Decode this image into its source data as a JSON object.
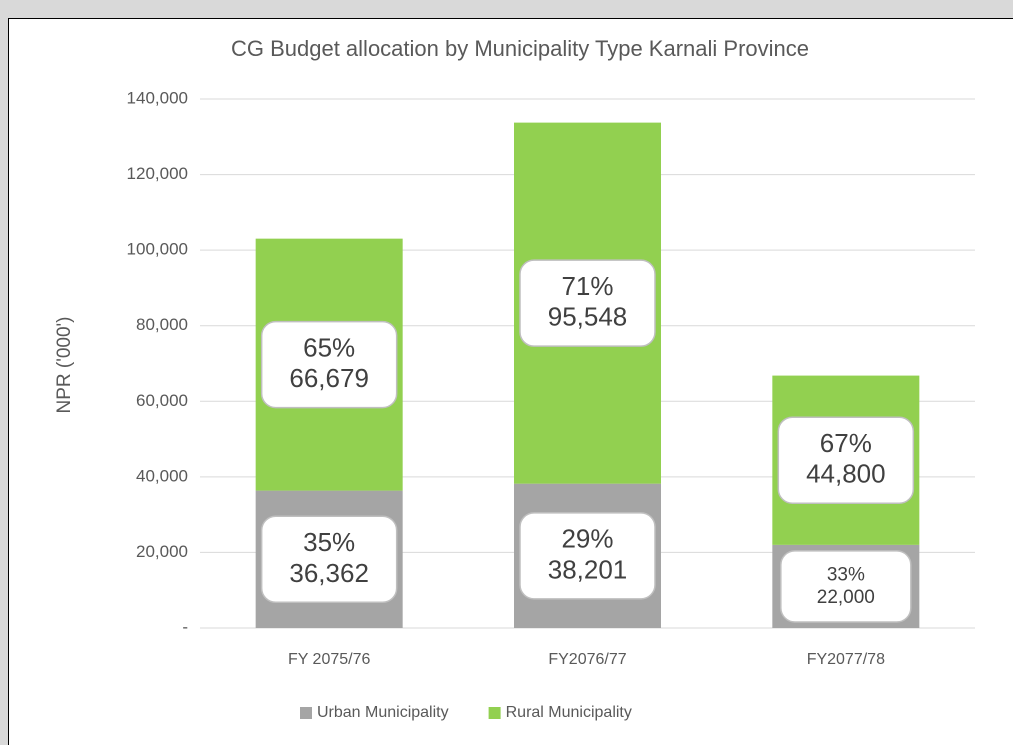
{
  "chart_data": {
    "type": "stacked_bar",
    "title": "CG Budget allocation by Municipality Type Karnali Province",
    "y_label": "NPR ('000')",
    "categories": [
      "FY 2075/76",
      "FY2076/77",
      "FY2077/78"
    ],
    "series": [
      {
        "name": "Urban Municipality",
        "color": "#a5a5a5",
        "values": [
          36362,
          38201,
          22000
        ],
        "value_labels": [
          "36,362",
          "38,201",
          "22,000"
        ],
        "percent_labels": [
          "35%",
          "29%",
          "33%"
        ]
      },
      {
        "name": "Rural Municipality",
        "color": "#92d050",
        "values": [
          66679,
          95548,
          44800
        ],
        "value_labels": [
          "66,679",
          "95,548",
          "44,800"
        ],
        "percent_labels": [
          "65%",
          "71%",
          "67%"
        ]
      }
    ],
    "ylim": [
      0,
      140000
    ],
    "yticks": [
      {
        "value": 0,
        "label": "-"
      },
      {
        "value": 20000,
        "label": "20,000"
      },
      {
        "value": 40000,
        "label": "40,000"
      },
      {
        "value": 60000,
        "label": "60,000"
      },
      {
        "value": 80000,
        "label": "80,000"
      },
      {
        "value": 100000,
        "label": "100,000"
      },
      {
        "value": 120000,
        "label": "120,000"
      },
      {
        "value": 140000,
        "label": "140,000"
      }
    ],
    "grid": true,
    "legend": "bottom"
  }
}
